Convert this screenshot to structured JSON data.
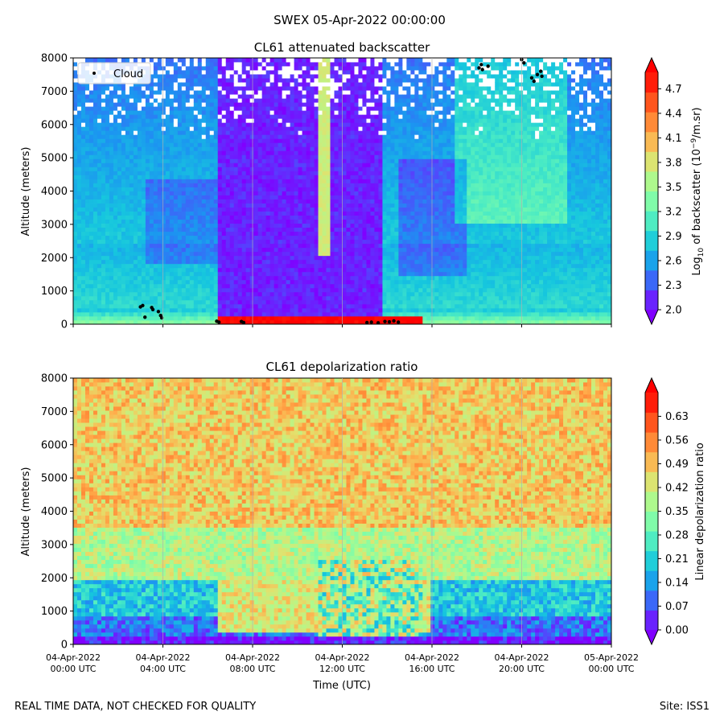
{
  "figure": {
    "suptitle": "SWEX 05-Apr-2022 00:00:00",
    "footer_left": "REAL TIME DATA, NOT CHECKED FOR QUALITY",
    "footer_right": "Site: ISS1"
  },
  "chart_data": [
    {
      "type": "heatmap",
      "title": "CL61 attenuated backscatter",
      "ylabel": "Altitude (meters)",
      "ylim": [
        0,
        8000
      ],
      "yticks": [
        "0",
        "1000",
        "2000",
        "3000",
        "4000",
        "5000",
        "6000",
        "7000",
        "8000"
      ],
      "xlim_hours": [
        0,
        24
      ],
      "x_tick_hours": [
        0,
        4,
        8,
        12,
        16,
        20,
        24
      ],
      "colorbar": {
        "label": "Log10 of backscatter (10^-9/m.sr)",
        "label_parts": {
          "a": "Log",
          "b": "10",
          "c": " of backscatter (10",
          "d": "−9",
          "e": "/m.sr)"
        },
        "range": [
          2.0,
          4.9
        ],
        "ticks": [
          "2.0",
          "2.3",
          "2.6",
          "2.9",
          "3.2",
          "3.5",
          "3.8",
          "4.1",
          "4.4",
          "4.7"
        ]
      },
      "legend": {
        "entry": "Cloud",
        "placement": "upper-left"
      },
      "cloud_points": [
        {
          "t": 3.0,
          "alt": 520
        },
        {
          "t": 3.1,
          "alt": 560
        },
        {
          "t": 3.2,
          "alt": 210
        },
        {
          "t": 3.5,
          "alt": 500
        },
        {
          "t": 3.55,
          "alt": 440
        },
        {
          "t": 3.8,
          "alt": 380
        },
        {
          "t": 3.9,
          "alt": 260
        },
        {
          "t": 3.95,
          "alt": 190
        },
        {
          "t": 6.4,
          "alt": 90
        },
        {
          "t": 6.5,
          "alt": 60
        },
        {
          "t": 7.5,
          "alt": 80
        },
        {
          "t": 7.6,
          "alt": 50
        },
        {
          "t": 13.1,
          "alt": 50
        },
        {
          "t": 13.3,
          "alt": 60
        },
        {
          "t": 13.6,
          "alt": 40
        },
        {
          "t": 13.9,
          "alt": 80
        },
        {
          "t": 14.1,
          "alt": 70
        },
        {
          "t": 14.3,
          "alt": 100
        },
        {
          "t": 14.5,
          "alt": 60
        },
        {
          "t": 18.1,
          "alt": 7700
        },
        {
          "t": 18.2,
          "alt": 7800
        },
        {
          "t": 18.25,
          "alt": 7650
        },
        {
          "t": 18.5,
          "alt": 7750
        },
        {
          "t": 20.0,
          "alt": 7950
        },
        {
          "t": 20.1,
          "alt": 7850
        },
        {
          "t": 20.45,
          "alt": 7400
        },
        {
          "t": 20.55,
          "alt": 7300
        },
        {
          "t": 20.7,
          "alt": 7500
        },
        {
          "t": 20.85,
          "alt": 7600
        },
        {
          "t": 20.9,
          "alt": 7450
        }
      ]
    },
    {
      "type": "heatmap",
      "title": "CL61 depolarization ratio",
      "ylabel": "Altitude (meters)",
      "xlabel": "Time (UTC)",
      "ylim": [
        0,
        8000
      ],
      "yticks": [
        "0",
        "1000",
        "2000",
        "3000",
        "4000",
        "5000",
        "6000",
        "7000",
        "8000"
      ],
      "xlim_hours": [
        0,
        24
      ],
      "x_tick_hours": [
        0,
        4,
        8,
        12,
        16,
        20,
        24
      ],
      "x_tick_labels": [
        {
          "date": "04-Apr-2022",
          "time": "00:00 UTC"
        },
        {
          "date": "04-Apr-2022",
          "time": "04:00 UTC"
        },
        {
          "date": "04-Apr-2022",
          "time": "08:00 UTC"
        },
        {
          "date": "04-Apr-2022",
          "time": "12:00 UTC"
        },
        {
          "date": "04-Apr-2022",
          "time": "16:00 UTC"
        },
        {
          "date": "04-Apr-2022",
          "time": "20:00 UTC"
        },
        {
          "date": "05-Apr-2022",
          "time": "00:00 UTC"
        }
      ],
      "colorbar": {
        "label": "Linear depolarization ratio",
        "range": [
          0.0,
          0.7
        ],
        "ticks": [
          "0.00",
          "0.07",
          "0.14",
          "0.21",
          "0.28",
          "0.35",
          "0.42",
          "0.49",
          "0.56",
          "0.63"
        ]
      }
    }
  ],
  "colors": {
    "rainbow": [
      "#8000ff",
      "#4e4dfc",
      "#1c94f1",
      "#16c6de",
      "#48eac5",
      "#7efcaa",
      "#b0f98c",
      "#e2e16d",
      "#ffb04d",
      "#ff7a2e",
      "#ff3f13",
      "#ff0000"
    ]
  }
}
